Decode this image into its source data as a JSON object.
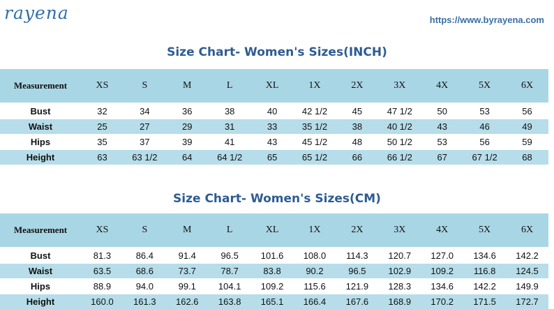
{
  "header": {
    "logo_text": "rayena",
    "url": "https://www.byrayena.com"
  },
  "tables": [
    {
      "title": "Size Chart- Women's Sizes(INCH)",
      "header_label": "Measurement",
      "sizes": [
        "XS",
        "S",
        "M",
        "L",
        "XL",
        "1X",
        "2X",
        "3X",
        "4X",
        "5X",
        "6X"
      ],
      "rows": [
        {
          "label": "Bust",
          "values": [
            "32",
            "34",
            "36",
            "38",
            "40",
            "42 1/2",
            "45",
            "47 1/2",
            "50",
            "53",
            "56"
          ]
        },
        {
          "label": "Waist",
          "values": [
            "25",
            "27",
            "29",
            "31",
            "33",
            "35 1/2",
            "38",
            "40 1/2",
            "43",
            "46",
            "49"
          ]
        },
        {
          "label": "Hips",
          "values": [
            "35",
            "37",
            "39",
            "41",
            "43",
            "45 1/2",
            "48",
            "50 1/2",
            "53",
            "56",
            "59"
          ]
        },
        {
          "label": "Height",
          "values": [
            "63",
            "63 1/2",
            "64",
            "64 1/2",
            "65",
            "65 1/2",
            "66",
            "66 1/2",
            "67",
            "67 1/2",
            "68"
          ]
        }
      ]
    },
    {
      "title": "Size Chart- Women's Sizes(CM)",
      "header_label": "Measurement",
      "sizes": [
        "XS",
        "S",
        "M",
        "L",
        "XL",
        "1X",
        "2X",
        "3X",
        "4X",
        "5X",
        "6X"
      ],
      "rows": [
        {
          "label": "Bust",
          "values": [
            "81.3",
            "86.4",
            "91.4",
            "96.5",
            "101.6",
            "108.0",
            "114.3",
            "120.7",
            "127.0",
            "134.6",
            "142.2"
          ]
        },
        {
          "label": "Waist",
          "values": [
            "63.5",
            "68.6",
            "73.7",
            "78.7",
            "83.8",
            "90.2",
            "96.5",
            "102.9",
            "109.2",
            "116.8",
            "124.5"
          ]
        },
        {
          "label": "Hips",
          "values": [
            "88.9",
            "94.0",
            "99.1",
            "104.1",
            "109.2",
            "115.6",
            "121.9",
            "128.3",
            "134.6",
            "142.2",
            "149.9"
          ]
        },
        {
          "label": "Height",
          "values": [
            "160.0",
            "161.3",
            "162.6",
            "163.8",
            "165.1",
            "166.4",
            "167.6",
            "168.9",
            "170.2",
            "171.5",
            "172.7"
          ]
        }
      ]
    }
  ],
  "colors": {
    "header_row": "#a9d6e5",
    "alt_row": "#b6dde9",
    "title": "#2e5c92",
    "logo": "#2f6fa8"
  }
}
